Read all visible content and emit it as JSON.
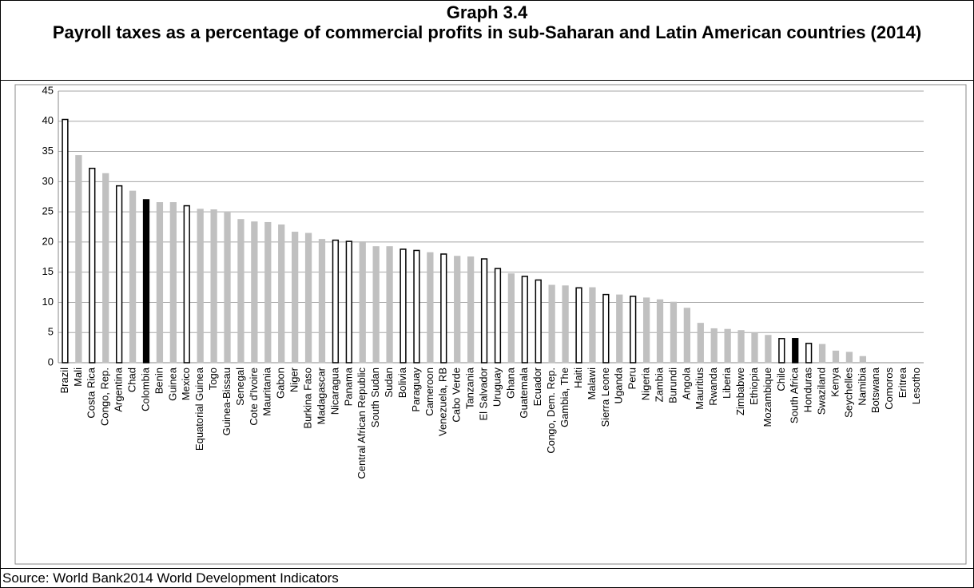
{
  "chart_data": {
    "type": "bar",
    "title": "Graph 3.4",
    "subtitle": "Payroll taxes as a percentage of commercial profits in sub-Saharan and Latin American countries (2014)",
    "source": "Source: World Bank2014 World Development Indicators",
    "categories": [
      "Brazil",
      "Mali",
      "Costa Rica",
      "Congo, Rep.",
      "Argentina",
      "Chad",
      "Colombia",
      "Benin",
      "Guinea",
      "Mexico",
      "Equatorial Guinea",
      "Togo",
      "Guinea-Bissau",
      "Senegal",
      "Cote d'Ivoire",
      "Mauritania",
      "Gabon",
      "Niger",
      "Burkina Faso",
      "Madagascar",
      "Nicaragua",
      "Panama",
      "Central African Republic",
      "South Sudan",
      "Sudan",
      "Bolivia",
      "Paraguay",
      "Cameroon",
      "Venezuela, RB",
      "Cabo Verde",
      "Tanzania",
      "El Salvador",
      "Uruguay",
      "Ghana",
      "Guatemala",
      "Ecuador",
      "Congo, Dem. Rep.",
      "Gambia, The",
      "Haiti",
      "Malawi",
      "Sierra Leone",
      "Uganda",
      "Peru",
      "Nigeria",
      "Zambia",
      "Burundi",
      "Angola",
      "Mauritius",
      "Rwanda",
      "Liberia",
      "Zimbabwe",
      "Ethiopia",
      "Mozambique",
      "Chile",
      "South Africa",
      "Honduras",
      "Swaziland",
      "Kenya",
      "Seychelles",
      "Namibia",
      "Botswana",
      "Comoros",
      "Eritrea",
      "Lesotho"
    ],
    "values": [
      40.3,
      34.3,
      32.2,
      31.3,
      29.3,
      28.4,
      27,
      26.5,
      26.5,
      26,
      25.4,
      25.3,
      24.8,
      23.7,
      23.3,
      23.2,
      22.8,
      21.6,
      21.4,
      20.4,
      20.3,
      20.1,
      20,
      19.2,
      19.2,
      18.8,
      18.6,
      18.2,
      18,
      17.6,
      17.5,
      17.2,
      15.6,
      14.7,
      14.3,
      13.7,
      12.8,
      12.7,
      12.4,
      12.4,
      11.3,
      11.2,
      11,
      10.7,
      10.4,
      10,
      9,
      6.5,
      5.6,
      5.5,
      5.3,
      4.8,
      4.5,
      4,
      4,
      3.2,
      3,
      1.9,
      1.7,
      1,
      0,
      0,
      0,
      0
    ],
    "colors": [
      "#ffffff",
      "#c0c0c0",
      "#ffffff",
      "#c0c0c0",
      "#ffffff",
      "#c0c0c0",
      "#000000",
      "#c0c0c0",
      "#c0c0c0",
      "#ffffff",
      "#c0c0c0",
      "#c0c0c0",
      "#c0c0c0",
      "#c0c0c0",
      "#c0c0c0",
      "#c0c0c0",
      "#c0c0c0",
      "#c0c0c0",
      "#c0c0c0",
      "#c0c0c0",
      "#ffffff",
      "#ffffff",
      "#c0c0c0",
      "#c0c0c0",
      "#c0c0c0",
      "#ffffff",
      "#ffffff",
      "#c0c0c0",
      "#ffffff",
      "#c0c0c0",
      "#c0c0c0",
      "#ffffff",
      "#ffffff",
      "#c0c0c0",
      "#ffffff",
      "#ffffff",
      "#c0c0c0",
      "#c0c0c0",
      "#ffffff",
      "#c0c0c0",
      "#ffffff",
      "#c0c0c0",
      "#ffffff",
      "#c0c0c0",
      "#c0c0c0",
      "#c0c0c0",
      "#c0c0c0",
      "#c0c0c0",
      "#c0c0c0",
      "#c0c0c0",
      "#c0c0c0",
      "#c0c0c0",
      "#c0c0c0",
      "#ffffff",
      "#000000",
      "#ffffff",
      "#c0c0c0",
      "#c0c0c0",
      "#c0c0c0",
      "#c0c0c0",
      "#c0c0c0",
      "#c0c0c0",
      "#c0c0c0",
      "#c0c0c0"
    ],
    "edgecolor": "#000000",
    "ylim": [
      0,
      45
    ],
    "yticks": [
      0,
      5,
      10,
      15,
      20,
      25,
      30,
      35,
      40,
      45
    ],
    "grid": true
  }
}
